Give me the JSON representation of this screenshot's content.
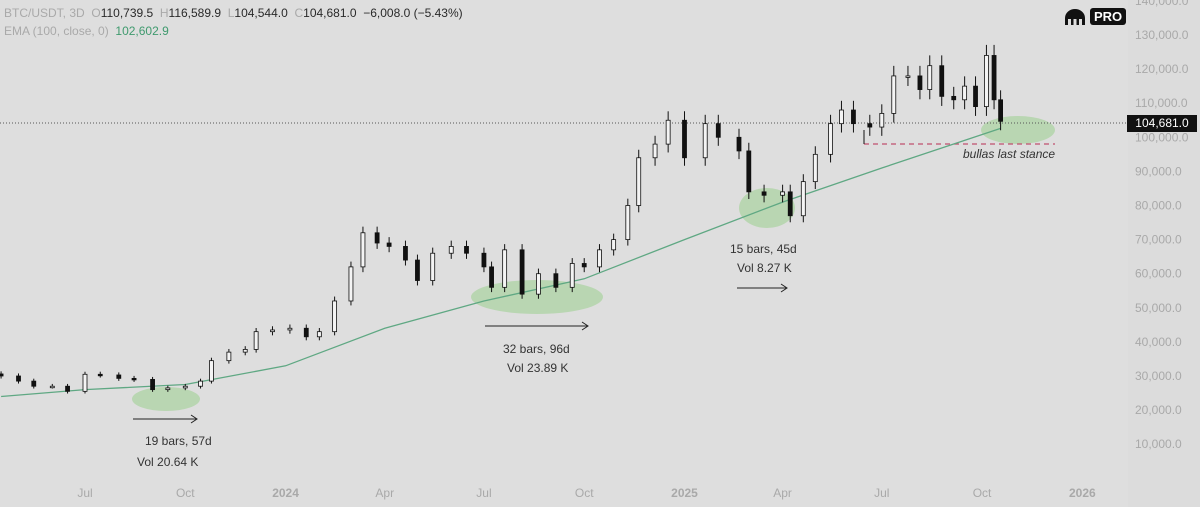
{
  "header": {
    "symbol": "BTC/USDT, 3D",
    "open_label": "O",
    "open": "110,739.5",
    "high_label": "H",
    "high": "116,589.9",
    "low_label": "L",
    "low": "104,544.0",
    "close_label": "C",
    "close": "104,681.0",
    "change": "−6,008.0 (−5.43%)",
    "indicator": "EMA (100, close, 0)",
    "indicator_value": "102,602.9"
  },
  "logo": {
    "text": "PRO",
    "icon": "kraken-icon"
  },
  "current_price_label": "104,681.0",
  "colors": {
    "background": "#dedede",
    "ema": "#5fa883",
    "ellipse": "#a9d3a0",
    "dashed": "#c0506e",
    "candle": "#111111"
  },
  "chart_data": {
    "type": "candlestick",
    "title": "BTC/USDT, 3D",
    "y_ticks": [
      "140,000.0",
      "130,000.0",
      "120,000.0",
      "110,000.0",
      "100,000.0",
      "90,000.0",
      "80,000.0",
      "70,000.0",
      "60,000.0",
      "50,000.0",
      "40,000.0",
      "30,000.0",
      "20,000.0",
      "10,000.0"
    ],
    "ylim": [
      10000,
      140000
    ],
    "x_ticks": [
      "Jul",
      "Oct",
      "2024",
      "Apr",
      "Jul",
      "Oct",
      "2025",
      "Apr",
      "Jul",
      "Oct",
      "2026"
    ],
    "grid": false,
    "series": [
      {
        "type": "candles",
        "closes": [
          [
            "2023-04-15",
            30000
          ],
          [
            "2023-05-01",
            28500
          ],
          [
            "2023-05-15",
            27000
          ],
          [
            "2023-06-01",
            27000
          ],
          [
            "2023-06-15",
            25500
          ],
          [
            "2023-07-01",
            30500
          ],
          [
            "2023-07-15",
            30300
          ],
          [
            "2023-08-01",
            29300
          ],
          [
            "2023-08-15",
            29000
          ],
          [
            "2023-09-01",
            26000
          ],
          [
            "2023-09-15",
            26500
          ],
          [
            "2023-10-01",
            27000
          ],
          [
            "2023-10-15",
            28500
          ],
          [
            "2023-10-25",
            34500
          ],
          [
            "2023-11-10",
            37000
          ],
          [
            "2023-11-25",
            37800
          ],
          [
            "2023-12-05",
            43000
          ],
          [
            "2023-12-20",
            43500
          ],
          [
            "2024-01-05",
            44000
          ],
          [
            "2024-01-20",
            41500
          ],
          [
            "2024-02-01",
            43000
          ],
          [
            "2024-02-15",
            52000
          ],
          [
            "2024-03-01",
            62000
          ],
          [
            "2024-03-12",
            72000
          ],
          [
            "2024-03-25",
            69000
          ],
          [
            "2024-04-05",
            68000
          ],
          [
            "2024-04-20",
            64000
          ],
          [
            "2024-05-01",
            58000
          ],
          [
            "2024-05-15",
            66000
          ],
          [
            "2024-06-01",
            68000
          ],
          [
            "2024-06-15",
            66000
          ],
          [
            "2024-07-01",
            62000
          ],
          [
            "2024-07-08",
            56000
          ],
          [
            "2024-07-20",
            67000
          ],
          [
            "2024-08-05",
            54000
          ],
          [
            "2024-08-20",
            60000
          ],
          [
            "2024-09-05",
            56000
          ],
          [
            "2024-09-20",
            63000
          ],
          [
            "2024-10-01",
            62000
          ],
          [
            "2024-10-15",
            67000
          ],
          [
            "2024-10-28",
            70000
          ],
          [
            "2024-11-10",
            80000
          ],
          [
            "2024-11-20",
            94000
          ],
          [
            "2024-12-05",
            98000
          ],
          [
            "2024-12-17",
            105000
          ],
          [
            "2025-01-01",
            94000
          ],
          [
            "2025-01-20",
            104000
          ],
          [
            "2025-02-01",
            100000
          ],
          [
            "2025-02-20",
            96000
          ],
          [
            "2025-03-01",
            84000
          ],
          [
            "2025-03-15",
            83000
          ],
          [
            "2025-04-01",
            84000
          ],
          [
            "2025-04-08",
            77000
          ],
          [
            "2025-04-20",
            87000
          ],
          [
            "2025-05-01",
            95000
          ],
          [
            "2025-05-15",
            104000
          ],
          [
            "2025-05-25",
            108000
          ],
          [
            "2025-06-05",
            104000
          ],
          [
            "2025-06-20",
            103000
          ],
          [
            "2025-07-01",
            107000
          ],
          [
            "2025-07-12",
            118000
          ],
          [
            "2025-07-25",
            118000
          ],
          [
            "2025-08-05",
            114000
          ],
          [
            "2025-08-14",
            121000
          ],
          [
            "2025-08-25",
            112000
          ],
          [
            "2025-09-05",
            111000
          ],
          [
            "2025-09-15",
            115000
          ],
          [
            "2025-09-25",
            109000
          ],
          [
            "2025-10-05",
            124000
          ],
          [
            "2025-10-12",
            111000
          ],
          [
            "2025-10-18",
            104681
          ]
        ]
      },
      {
        "type": "line",
        "name": "EMA (100, close, 0)",
        "points": [
          [
            "2023-04-15",
            24000
          ],
          [
            "2023-07-01",
            26000
          ],
          [
            "2023-10-01",
            27500
          ],
          [
            "2024-01-01",
            33000
          ],
          [
            "2024-04-01",
            44000
          ],
          [
            "2024-07-01",
            52000
          ],
          [
            "2024-10-01",
            58500
          ],
          [
            "2025-01-01",
            70000
          ],
          [
            "2025-04-01",
            81000
          ],
          [
            "2025-07-01",
            91000
          ],
          [
            "2025-10-18",
            102602.9
          ]
        ]
      }
    ],
    "annotations": [
      {
        "line1": "19 bars, 57d",
        "line2": "Vol 20.64 K"
      },
      {
        "line1": "32 bars, 96d",
        "line2": "Vol 23.89 K"
      },
      {
        "line1": "15 bars, 45d",
        "line2": "Vol 8.27 K"
      },
      {
        "line1": "bullas last stance"
      }
    ],
    "support_level": 98000
  }
}
